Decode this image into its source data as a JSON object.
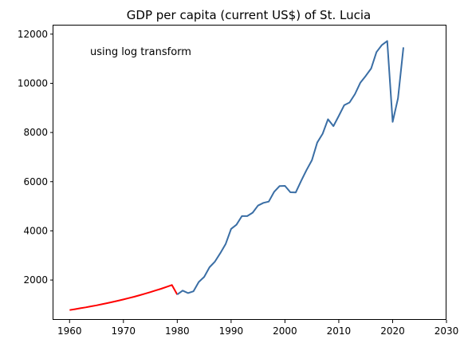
{
  "chart_data": {
    "type": "line",
    "title": "GDP per capita (current US$) of St. Lucia",
    "xlabel": "",
    "ylabel": "",
    "xlim": [
      1957.0,
      2030.0
    ],
    "ylim": [
      380,
      12350
    ],
    "x_ticks": [
      1960,
      1970,
      1980,
      1990,
      2000,
      2010,
      2020,
      2030
    ],
    "y_ticks": [
      2000,
      4000,
      6000,
      8000,
      10000,
      12000
    ],
    "grid": false,
    "legend": "none",
    "annotation": "using log transform",
    "series": [
      {
        "color": "#ff0000",
        "x": [
          1960,
          1961,
          1962,
          1963,
          1964,
          1965,
          1966,
          1967,
          1968,
          1969,
          1970,
          1971,
          1972,
          1973,
          1974,
          1975,
          1976,
          1977,
          1978,
          1979,
          1980
        ],
        "y": [
          780,
          815,
          852,
          890,
          930,
          972,
          1016,
          1061,
          1109,
          1159,
          1211,
          1265,
          1322,
          1381,
          1443,
          1508,
          1576,
          1646,
          1720,
          1797,
          1410
        ]
      },
      {
        "color": "#3a6ea5",
        "x": [
          1980,
          1981,
          1982,
          1983,
          1984,
          1985,
          1986,
          1987,
          1988,
          1989,
          1990,
          1991,
          1992,
          1993,
          1994,
          1995,
          1996,
          1997,
          1998,
          1999,
          2000,
          2001,
          2002,
          2003,
          2004,
          2005,
          2006,
          2007,
          2008,
          2009,
          2010,
          2011,
          2012,
          2013,
          2014,
          2015,
          2016,
          2017,
          2018,
          2019,
          2020,
          2021,
          2022
        ],
        "y": [
          1410,
          1570,
          1470,
          1540,
          1920,
          2130,
          2520,
          2750,
          3100,
          3470,
          4080,
          4250,
          4600,
          4600,
          4740,
          5030,
          5140,
          5190,
          5590,
          5820,
          5830,
          5570,
          5560,
          6030,
          6470,
          6870,
          7590,
          7950,
          8540,
          8260,
          8670,
          9110,
          9220,
          9560,
          10020,
          10300,
          10600,
          11270,
          11560,
          11720,
          8430,
          9390,
          11460
        ]
      }
    ]
  }
}
